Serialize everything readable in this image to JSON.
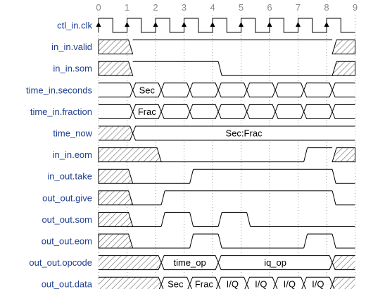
{
  "cycles": [
    "0",
    "1",
    "2",
    "3",
    "4",
    "5",
    "6",
    "7",
    "8",
    "9"
  ],
  "signals": [
    {
      "name": "ctl_in.clk",
      "kind": "clk"
    },
    {
      "name": "in_in.valid",
      "kind": "bit",
      "segs": [
        [
          "x",
          0,
          1.2
        ],
        [
          1,
          1.2,
          8.2
        ],
        [
          "x",
          8.2,
          9
        ]
      ]
    },
    {
      "name": "in_in.som",
      "kind": "bit",
      "segs": [
        [
          "x",
          0,
          1.2
        ],
        [
          1,
          1.2,
          4.2
        ],
        [
          0,
          4.2,
          8.2
        ],
        [
          "x",
          8.2,
          9
        ]
      ]
    },
    {
      "name": "time_in.seconds",
      "kind": "bus",
      "segs": [
        [
          "=",
          0,
          1.2,
          ""
        ],
        [
          "=",
          1.2,
          2.2,
          "Sec"
        ],
        [
          "=",
          2.2,
          3.2,
          ""
        ],
        [
          "=",
          3.2,
          4.2,
          ""
        ],
        [
          "=",
          4.2,
          5.2,
          ""
        ],
        [
          "=",
          5.2,
          6.2,
          ""
        ],
        [
          "=",
          6.2,
          7.2,
          ""
        ],
        [
          "=",
          7.2,
          8.2,
          ""
        ],
        [
          "=",
          8.2,
          9,
          ""
        ]
      ]
    },
    {
      "name": "time_in.fraction",
      "kind": "bus",
      "segs": [
        [
          "=",
          0,
          1.2,
          ""
        ],
        [
          "=",
          1.2,
          2.2,
          "Frac"
        ],
        [
          "=",
          2.2,
          3.2,
          ""
        ],
        [
          "=",
          3.2,
          4.2,
          ""
        ],
        [
          "=",
          4.2,
          5.2,
          ""
        ],
        [
          "=",
          5.2,
          6.2,
          ""
        ],
        [
          "=",
          6.2,
          7.2,
          ""
        ],
        [
          "=",
          7.2,
          8.2,
          ""
        ],
        [
          "=",
          8.2,
          9,
          ""
        ]
      ]
    },
    {
      "name": "time_now",
      "kind": "bus",
      "segs": [
        [
          "x",
          0,
          1.2,
          ""
        ],
        [
          "=",
          1.2,
          9,
          "Sec:Frac"
        ]
      ]
    },
    {
      "name": "in_in.eom",
      "kind": "bit",
      "segs": [
        [
          "x",
          0,
          2.2
        ],
        [
          0,
          2.2,
          7.2
        ],
        [
          1,
          7.2,
          8.2
        ],
        [
          "x",
          8.2,
          9
        ]
      ]
    },
    {
      "name": "in_out.take",
      "kind": "bit",
      "segs": [
        [
          "x",
          0,
          1.2
        ],
        [
          0,
          1.2,
          3.2
        ],
        [
          1,
          3.2,
          8.2
        ],
        [
          0,
          8.2,
          9
        ]
      ]
    },
    {
      "name": "out_out.give",
      "kind": "bit",
      "segs": [
        [
          "x",
          0,
          1.2
        ],
        [
          0,
          1.2,
          2.2
        ],
        [
          1,
          2.2,
          8.2
        ],
        [
          0,
          8.2,
          9
        ]
      ]
    },
    {
      "name": "out_out.som",
      "kind": "bit",
      "segs": [
        [
          "x",
          0,
          1.2
        ],
        [
          0,
          1.2,
          2.2
        ],
        [
          1,
          2.2,
          3.2
        ],
        [
          0,
          3.2,
          4.2
        ],
        [
          1,
          4.2,
          5.2
        ],
        [
          0,
          5.2,
          9
        ]
      ]
    },
    {
      "name": "out_out.eom",
      "kind": "bit",
      "segs": [
        [
          "x",
          0,
          1.2
        ],
        [
          0,
          1.2,
          3.2
        ],
        [
          1,
          3.2,
          4.2
        ],
        [
          0,
          4.2,
          7.2
        ],
        [
          1,
          7.2,
          8.2
        ],
        [
          0,
          8.2,
          9
        ]
      ]
    },
    {
      "name": "out_out.opcode",
      "kind": "bus",
      "segs": [
        [
          "x",
          0,
          2.2,
          ""
        ],
        [
          "=",
          2.2,
          4.2,
          "time_op"
        ],
        [
          "=",
          4.2,
          8.2,
          "iq_op"
        ],
        [
          "x",
          8.2,
          9,
          ""
        ]
      ]
    },
    {
      "name": "out_out.data",
      "kind": "bus",
      "segs": [
        [
          "x",
          0,
          2.2,
          ""
        ],
        [
          "=",
          2.2,
          3.2,
          "Sec"
        ],
        [
          "=",
          3.2,
          4.2,
          "Frac"
        ],
        [
          "=",
          4.2,
          5.2,
          "I/Q"
        ],
        [
          "=",
          5.2,
          6.2,
          "I/Q"
        ],
        [
          "=",
          6.2,
          7.2,
          "I/Q"
        ],
        [
          "=",
          7.2,
          8.2,
          "I/Q"
        ],
        [
          "x",
          8.2,
          9,
          ""
        ]
      ]
    }
  ]
}
